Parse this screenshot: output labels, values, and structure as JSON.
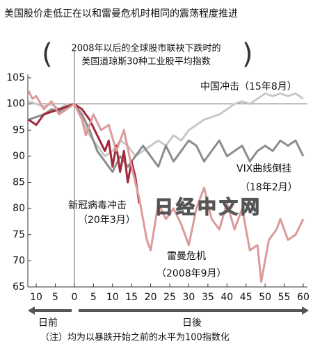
{
  "chart_data": {
    "type": "line",
    "title": "美国股价走低正在以和雷曼危机时相同的震荡程度推进",
    "subtitle": [
      "2008年以后的全球股市联袂下跌时的",
      "美国道琼斯30种工业股平均指数"
    ],
    "xlim": [
      -12.2,
      61.1
    ],
    "xticks": [
      {
        "value": -10,
        "label": "10"
      },
      {
        "value": -5,
        "label": "5"
      },
      0,
      5,
      10,
      15,
      20,
      25,
      30,
      35,
      40,
      45,
      50,
      55,
      60
    ],
    "ylim": [
      65,
      105
    ],
    "yticks": [
      65,
      70,
      75,
      80,
      85,
      90,
      95,
      100,
      105
    ],
    "hline": 100,
    "vline": 0,
    "x_direction_labels": [
      "日前",
      "日後"
    ],
    "annotations": [
      "中国冲击（15年8月）",
      "VIX曲线倒挂",
      "（18年2月）",
      "新冠病毒冲击",
      "（20年3月）",
      "雷曼危机",
      "（2008年9月）"
    ],
    "watermark": "日经中文网",
    "note": "（注）均为以暴跌开始之前的水平为100指数化",
    "series": [
      {
        "name": "中国冲击",
        "color": "#c8c8c8",
        "x": [
          -12,
          -10,
          -8,
          -6,
          -4,
          -2,
          0,
          2,
          4,
          6,
          8,
          10,
          12,
          14,
          16,
          18,
          20,
          22,
          24,
          26,
          28,
          30,
          32,
          34,
          36,
          38,
          40,
          42,
          44,
          46,
          48,
          50,
          52,
          54,
          56,
          58,
          60
        ],
        "values": [
          100.5,
          100,
          99.5,
          100,
          99,
          100,
          100,
          97,
          94,
          92,
          90,
          91,
          93,
          92,
          90,
          91,
          92,
          93,
          92,
          94,
          93,
          95,
          96,
          97,
          97.5,
          98,
          99,
          100,
          100.5,
          100,
          101,
          102,
          101.5,
          102,
          101.5,
          102,
          101
        ]
      },
      {
        "name": "VIX曲线倒挂",
        "color": "#8c8c8c",
        "x": [
          -12,
          -10,
          -8,
          -6,
          -4,
          -2,
          0,
          2,
          4,
          6,
          8,
          10,
          12,
          14,
          16,
          18,
          20,
          22,
          24,
          26,
          28,
          30,
          32,
          34,
          36,
          38,
          40,
          42,
          44,
          46,
          48,
          50,
          52,
          54,
          56,
          58,
          60
        ],
        "values": [
          97,
          97.5,
          98,
          99,
          98.5,
          99.5,
          100,
          98,
          95,
          91,
          89,
          87,
          90,
          88,
          90,
          92,
          90,
          88,
          92,
          89,
          91,
          93,
          92,
          89,
          91,
          93,
          90,
          91,
          92,
          89,
          91,
          92,
          91,
          93,
          92,
          93,
          90
        ]
      },
      {
        "name": "新冠病毒冲击",
        "color": "#a3283c",
        "x": [
          -12,
          -10,
          -8,
          -6,
          -4,
          -2,
          0,
          2,
          4,
          6,
          8,
          9,
          10,
          11,
          12,
          13,
          14,
          15,
          16,
          17
        ],
        "values": [
          97,
          96,
          98,
          98.5,
          99,
          99.5,
          100,
          99,
          97,
          94,
          91,
          93,
          88,
          92,
          87,
          91,
          85,
          89,
          86,
          81
        ]
      },
      {
        "name": "雷曼危机",
        "color": "#dc9a9a",
        "x": [
          -12,
          -11,
          -10,
          -8,
          -6,
          -4,
          -2,
          0,
          2,
          3,
          5,
          7,
          9,
          11,
          13,
          15,
          17,
          18,
          19,
          20,
          22,
          24,
          26,
          28,
          30,
          32,
          34,
          36,
          38,
          40,
          42,
          44,
          46,
          48,
          49,
          51,
          53,
          54,
          56,
          58,
          60
        ],
        "values": [
          102.5,
          101,
          101.5,
          99,
          100.5,
          98,
          99,
          100,
          97,
          94,
          98,
          95,
          96,
          91,
          95,
          88,
          82,
          78,
          74,
          72,
          81,
          78,
          80,
          77,
          73,
          80,
          84,
          78,
          76,
          81,
          76,
          80,
          72,
          73,
          66,
          74,
          76,
          78,
          74,
          75,
          78
        ]
      }
    ]
  }
}
